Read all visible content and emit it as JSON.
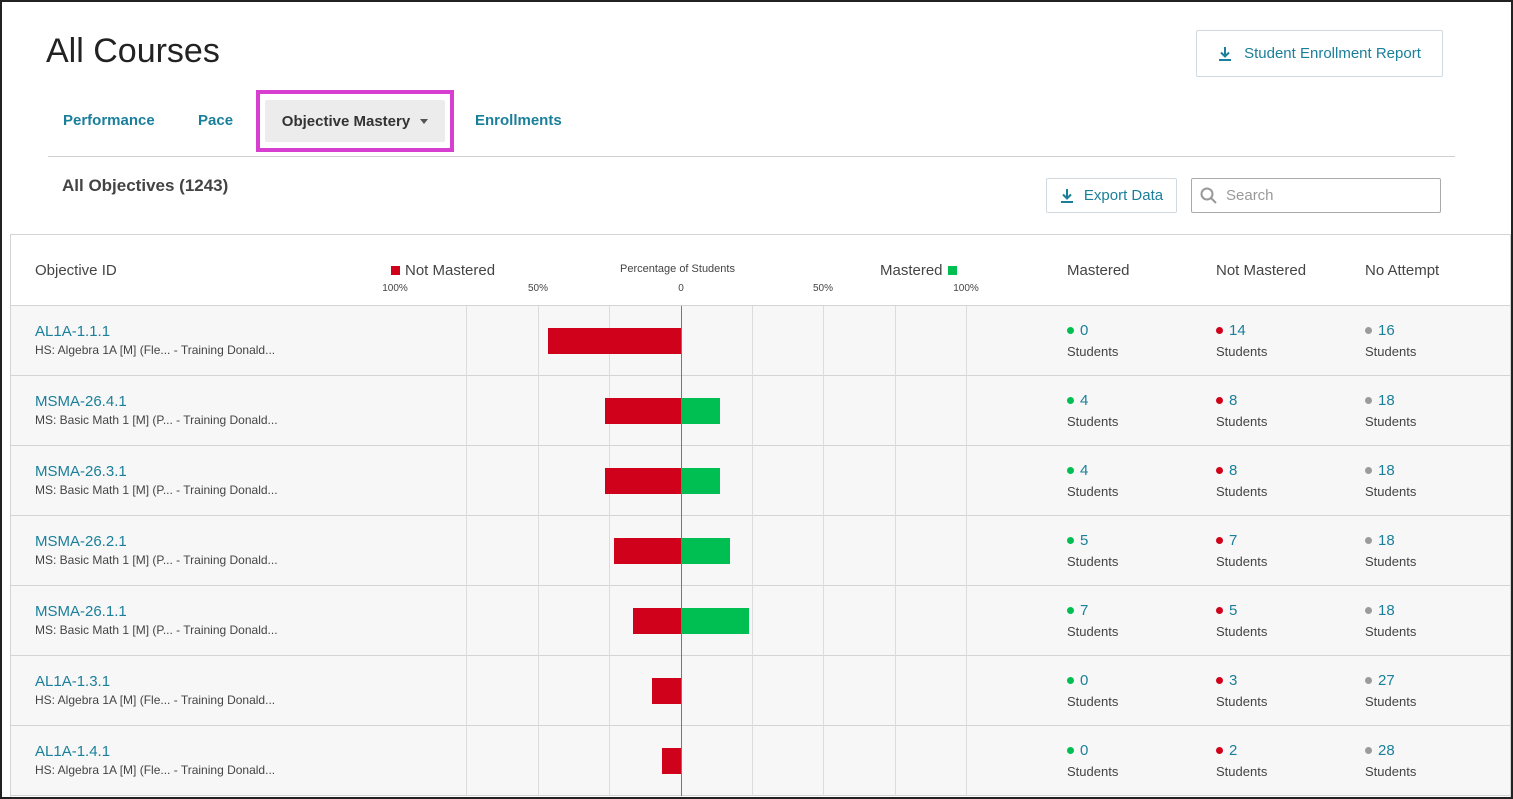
{
  "page": {
    "title": "All Courses"
  },
  "header": {
    "report_button_label": "Student Enrollment Report"
  },
  "tabs": {
    "performance": "Performance",
    "pace": "Pace",
    "objective_mastery": "Objective Mastery",
    "enrollments": "Enrollments"
  },
  "section": {
    "title": "All Objectives (1243)"
  },
  "toolbar": {
    "export_label": "Export Data",
    "search_placeholder": "Search"
  },
  "colors": {
    "accent": "#1a7f9a",
    "not_mastered": "#d0021b",
    "mastered": "#00bf52",
    "no_attempt": "#9b9b9b",
    "highlight": "#d63fd0"
  },
  "table": {
    "headers": {
      "objective_id": "Objective ID",
      "not_mastered_legend": "Not Mastered",
      "percentage": "Percentage of Students",
      "mastered_legend": "Mastered",
      "mastered": "Mastered",
      "not_mastered": "Not Mastered",
      "no_attempt": "No Attempt"
    },
    "ticks": [
      "100%",
      "50%",
      "0",
      "50%",
      "100%"
    ],
    "students_label": "Students",
    "rows": [
      {
        "id": "AL1A-1.1.1",
        "desc": "HS: Algebra 1A [M] (Fle...   - Training Donald...",
        "mastered": 0,
        "not_mastered": 14,
        "no_attempt": 16
      },
      {
        "id": "MSMA-26.4.1",
        "desc": "MS: Basic Math 1 [M] (P...   - Training Donald...",
        "mastered": 4,
        "not_mastered": 8,
        "no_attempt": 18
      },
      {
        "id": "MSMA-26.3.1",
        "desc": "MS: Basic Math 1 [M] (P...   - Training Donald...",
        "mastered": 4,
        "not_mastered": 8,
        "no_attempt": 18
      },
      {
        "id": "MSMA-26.2.1",
        "desc": "MS: Basic Math 1 [M] (P...   - Training Donald...",
        "mastered": 5,
        "not_mastered": 7,
        "no_attempt": 18
      },
      {
        "id": "MSMA-26.1.1",
        "desc": "MS: Basic Math 1 [M] (P...   - Training Donald...",
        "mastered": 7,
        "not_mastered": 5,
        "no_attempt": 18
      },
      {
        "id": "AL1A-1.3.1",
        "desc": "HS: Algebra 1A [M] (Fle...   - Training Donald...",
        "mastered": 0,
        "not_mastered": 3,
        "no_attempt": 27
      },
      {
        "id": "AL1A-1.4.1",
        "desc": "HS: Algebra 1A [M] (Fle...   - Training Donald...",
        "mastered": 0,
        "not_mastered": 2,
        "no_attempt": 28
      }
    ]
  }
}
